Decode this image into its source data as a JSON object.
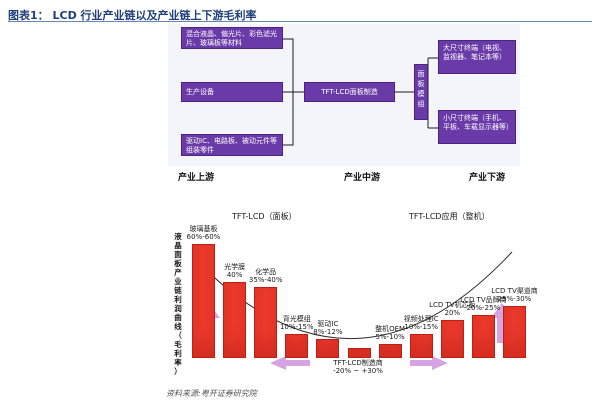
{
  "title": "图表1： LCD 行业产业链以及产业链上下游毛利率",
  "top_diagram": {
    "upstream_boxes": [
      "混合液晶、偏光片、彩色滤光片、玻璃板等材料",
      "生产设备",
      "驱动IC、电路板、被动元件等组装零件"
    ],
    "middle_box": "TFT-LCD面板制造",
    "module_box": "面板模组",
    "downstream_boxes": [
      "大尺寸终端（电视、监视器、笔记本等）",
      "小尺寸终端（手机、平板、车载显示器等）"
    ],
    "stages": [
      "产业上游",
      "产业中游",
      "产业下游"
    ]
  },
  "margin_chart": {
    "left_section": "TFT-LCD（面板）",
    "right_section": "TFT-LCD应用（整机）",
    "ylabel_chars": [
      "液",
      "晶",
      "面",
      "板",
      "产",
      "业",
      "链",
      "利",
      "润",
      "曲",
      "线",
      "（",
      "毛",
      "利",
      "率",
      "）"
    ],
    "bottom_caption_line1": "TFT-LCD制造商",
    "bottom_caption_line2": "-20% ~ +30%",
    "colors": {
      "bar": "#ee3b2e",
      "arrow": "#d7a3e3",
      "box": "#6a3aa8"
    }
  },
  "chart_data": {
    "type": "bar",
    "categories": [
      "玻璃基板",
      "光学膜",
      "化学品",
      "背光模组",
      "驱动IC",
      "TFT-LCD制造商",
      "整机OEM",
      "视频处理IC",
      "LCD TV机芯板",
      "LCD TV品牌商",
      "LCD TV渠道商"
    ],
    "value_labels": [
      "60%-60%",
      "40%",
      "35%-40%",
      "10%-15%",
      "8%-12%",
      "-20% ~ +30%",
      "5%-10%",
      "10%-15%",
      "20%",
      "20%-25%",
      "25%-30%"
    ],
    "values": [
      60,
      40,
      37.5,
      12.5,
      10,
      5,
      7.5,
      12.5,
      20,
      22.5,
      27.5
    ]
  },
  "source": "资料来源:粤开证券研究院"
}
